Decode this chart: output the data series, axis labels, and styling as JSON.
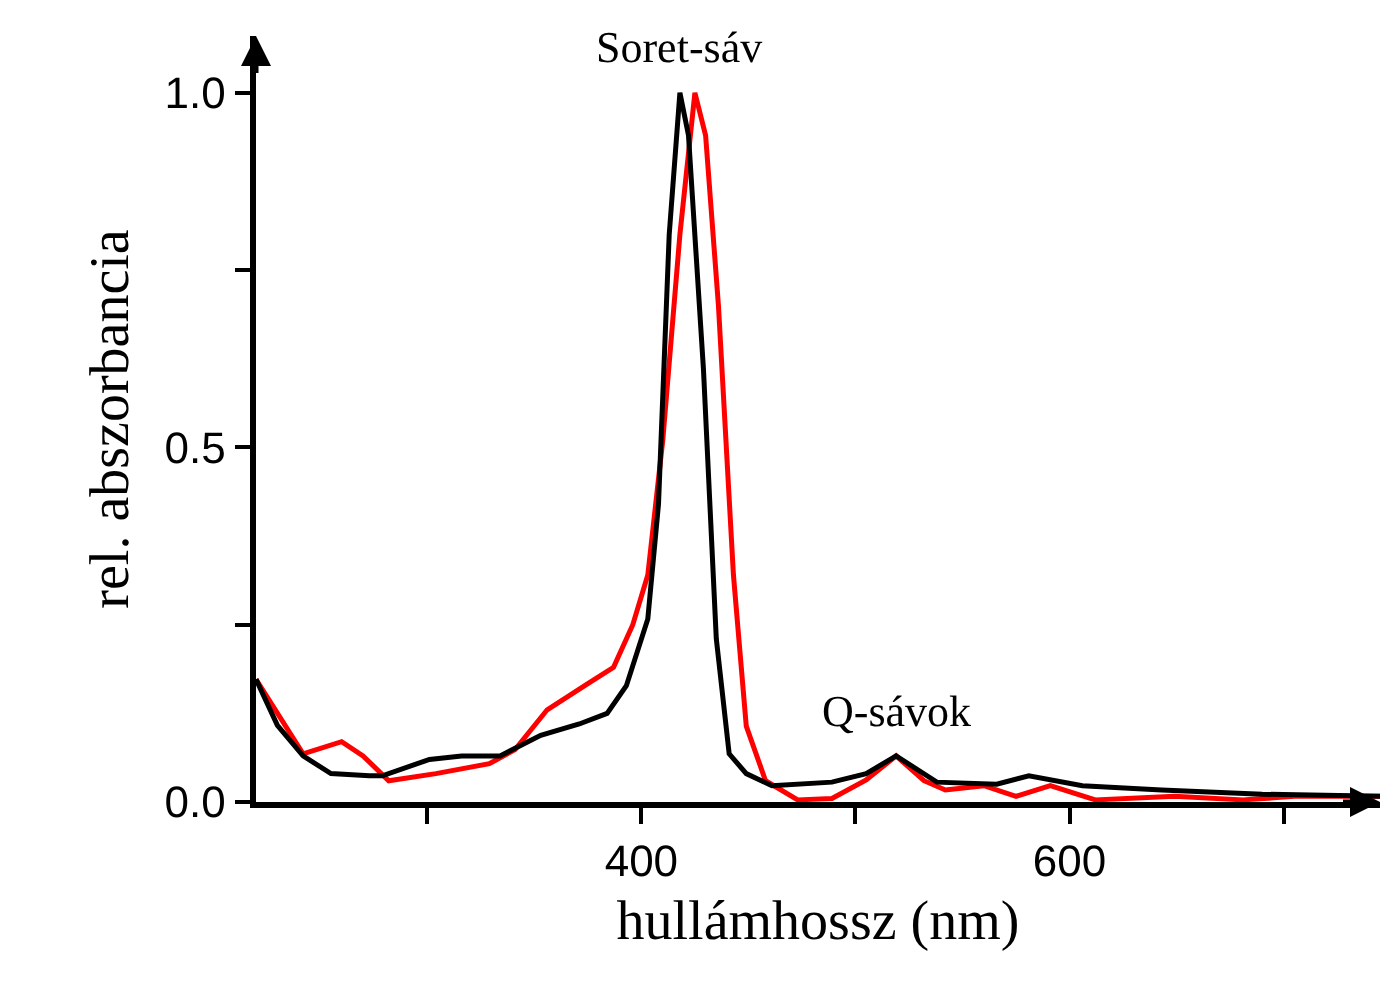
{
  "chart_data": {
    "type": "line",
    "xlabel": "hullámhossz (nm)",
    "ylabel": "rel. abszorbancia",
    "xlim": [
      220,
      745
    ],
    "ylim": [
      0,
      1.08
    ],
    "xticks": [
      {
        "value": 300,
        "label": null
      },
      400,
      {
        "value": 500,
        "label": null
      },
      600,
      {
        "value": 700,
        "label": null
      }
    ],
    "yticks": [
      {
        "value": 0,
        "label": "0.0"
      },
      {
        "value": 0.25,
        "label": null
      },
      {
        "value": 0.5,
        "label": "0.5"
      },
      {
        "value": 0.75,
        "label": null
      },
      {
        "value": 1,
        "label": "1.0"
      }
    ],
    "grid": false,
    "marker": "none",
    "line_style": "solid",
    "annotations": [
      {
        "text": "Soret-sáv",
        "x": 418,
        "y": 1.0
      },
      {
        "text": "Q-sávok",
        "x": 519,
        "y": 0.065
      }
    ],
    "series": [
      {
        "color": "#ff0000",
        "x": [
          220,
          242,
          260,
          270,
          282,
          304,
          329,
          341,
          356,
          375,
          387,
          396,
          403,
          410,
          418,
          425,
          430,
          436,
          443,
          449,
          458,
          473,
          489,
          505,
          519,
          532,
          542,
          560,
          575,
          591,
          612,
          649,
          681,
          705,
          745
        ],
        "values": [
          0.173,
          0.068,
          0.085,
          0.065,
          0.03,
          0.04,
          0.054,
          0.074,
          0.13,
          0.167,
          0.19,
          0.25,
          0.32,
          0.51,
          0.8,
          1.0,
          0.94,
          0.7,
          0.32,
          0.107,
          0.03,
          0.003,
          0.005,
          0.031,
          0.065,
          0.03,
          0.017,
          0.023,
          0.008,
          0.023,
          0.003,
          0.008,
          0.003,
          0.008,
          0.008
        ]
      },
      {
        "color": "#000000",
        "x": [
          220,
          230,
          242,
          255,
          273,
          279,
          301,
          316,
          334,
          353,
          371,
          384,
          393,
          403,
          408,
          413,
          418,
          422,
          429,
          435,
          441,
          449,
          461,
          489,
          505,
          519,
          538,
          566,
          581,
          606,
          643,
          690,
          745
        ],
        "values": [
          0.173,
          0.108,
          0.065,
          0.04,
          0.037,
          0.037,
          0.06,
          0.065,
          0.065,
          0.094,
          0.11,
          0.125,
          0.164,
          0.258,
          0.42,
          0.8,
          1.0,
          0.94,
          0.61,
          0.23,
          0.068,
          0.04,
          0.023,
          0.028,
          0.04,
          0.065,
          0.028,
          0.025,
          0.037,
          0.023,
          0.017,
          0.011,
          0.008
        ]
      }
    ]
  }
}
